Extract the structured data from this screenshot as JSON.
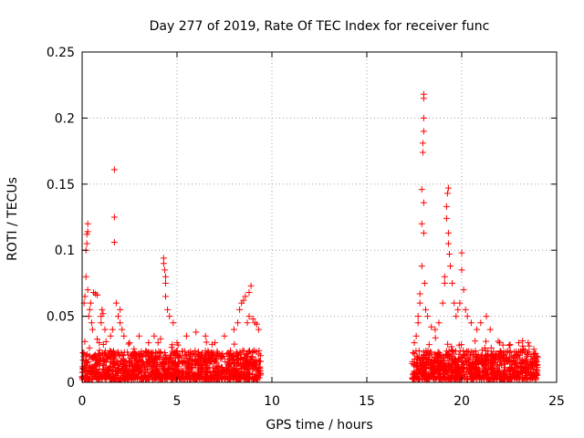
{
  "chart_data": {
    "type": "scatter",
    "title": "Day 277 of 2019, Rate Of TEC Index for receiver func",
    "xlabel": "GPS time / hours",
    "ylabel": "ROTI / TECUs",
    "xlim": [
      0,
      25
    ],
    "ylim": [
      0,
      0.25
    ],
    "xticks": [
      0,
      5,
      10,
      15,
      20,
      25
    ],
    "yticks": [
      0,
      0.05,
      0.1,
      0.15,
      0.2,
      0.25
    ],
    "xtick_labels": [
      "0",
      "5",
      "10",
      "15",
      "20",
      "25"
    ],
    "ytick_labels": [
      "0",
      "0.05",
      "0.1",
      "0.15",
      "0.2",
      "0.25"
    ],
    "grid": true,
    "marker": "+",
    "color": "#ff0000",
    "series": [
      {
        "name": "ROTI",
        "segments": [
          {
            "x_start": 0.0,
            "x_end": 9.4,
            "base_max": 0.022
          },
          {
            "x_start": 17.4,
            "x_end": 24.0,
            "base_max": 0.022
          }
        ],
        "points": [
          [
            0.1,
            0.06
          ],
          [
            0.15,
            0.065
          ],
          [
            0.2,
            0.08
          ],
          [
            0.2,
            0.1
          ],
          [
            0.25,
            0.105
          ],
          [
            0.25,
            0.112
          ],
          [
            0.3,
            0.114
          ],
          [
            0.3,
            0.12
          ],
          [
            0.3,
            0.07
          ],
          [
            0.35,
            0.05
          ],
          [
            0.4,
            0.055
          ],
          [
            0.45,
            0.06
          ],
          [
            0.5,
            0.045
          ],
          [
            0.55,
            0.04
          ],
          [
            0.6,
            0.068
          ],
          [
            0.7,
            0.067
          ],
          [
            0.8,
            0.066
          ],
          [
            0.9,
            0.03
          ],
          [
            1.0,
            0.045
          ],
          [
            1.0,
            0.05
          ],
          [
            1.05,
            0.055
          ],
          [
            1.1,
            0.052
          ],
          [
            1.2,
            0.04
          ],
          [
            1.5,
            0.035
          ],
          [
            1.6,
            0.04
          ],
          [
            1.7,
            0.161
          ],
          [
            1.7,
            0.125
          ],
          [
            1.7,
            0.106
          ],
          [
            1.8,
            0.06
          ],
          [
            1.9,
            0.05
          ],
          [
            2.0,
            0.055
          ],
          [
            2.0,
            0.045
          ],
          [
            2.1,
            0.04
          ],
          [
            2.2,
            0.035
          ],
          [
            2.5,
            0.03
          ],
          [
            3.0,
            0.035
          ],
          [
            3.5,
            0.03
          ],
          [
            3.8,
            0.035
          ],
          [
            4.0,
            0.03
          ],
          [
            4.3,
            0.094
          ],
          [
            4.3,
            0.09
          ],
          [
            4.35,
            0.085
          ],
          [
            4.4,
            0.08
          ],
          [
            4.4,
            0.075
          ],
          [
            4.4,
            0.065
          ],
          [
            4.5,
            0.055
          ],
          [
            4.6,
            0.05
          ],
          [
            4.8,
            0.045
          ],
          [
            5.0,
            0.03
          ],
          [
            5.5,
            0.035
          ],
          [
            6.0,
            0.038
          ],
          [
            6.5,
            0.035
          ],
          [
            7.0,
            0.03
          ],
          [
            7.5,
            0.035
          ],
          [
            8.0,
            0.04
          ],
          [
            8.2,
            0.045
          ],
          [
            8.3,
            0.055
          ],
          [
            8.4,
            0.06
          ],
          [
            8.5,
            0.062
          ],
          [
            8.6,
            0.065
          ],
          [
            8.7,
            0.045
          ],
          [
            8.8,
            0.05
          ],
          [
            8.8,
            0.068
          ],
          [
            8.9,
            0.073
          ],
          [
            9.0,
            0.048
          ],
          [
            9.1,
            0.045
          ],
          [
            9.2,
            0.044
          ],
          [
            9.3,
            0.04
          ],
          [
            17.5,
            0.03
          ],
          [
            17.6,
            0.035
          ],
          [
            17.7,
            0.045
          ],
          [
            17.7,
            0.05
          ],
          [
            17.8,
            0.06
          ],
          [
            17.8,
            0.067
          ],
          [
            17.9,
            0.088
          ],
          [
            17.9,
            0.12
          ],
          [
            17.9,
            0.146
          ],
          [
            17.95,
            0.174
          ],
          [
            17.95,
            0.181
          ],
          [
            18.0,
            0.19
          ],
          [
            18.0,
            0.2
          ],
          [
            18.0,
            0.215
          ],
          [
            18.0,
            0.218
          ],
          [
            18.0,
            0.113
          ],
          [
            18.0,
            0.136
          ],
          [
            18.05,
            0.075
          ],
          [
            18.1,
            0.055
          ],
          [
            18.2,
            0.05
          ],
          [
            18.4,
            0.042
          ],
          [
            18.6,
            0.04
          ],
          [
            18.8,
            0.045
          ],
          [
            19.0,
            0.06
          ],
          [
            19.1,
            0.075
          ],
          [
            19.1,
            0.08
          ],
          [
            19.2,
            0.124
          ],
          [
            19.2,
            0.133
          ],
          [
            19.25,
            0.143
          ],
          [
            19.3,
            0.147
          ],
          [
            19.3,
            0.113
          ],
          [
            19.3,
            0.105
          ],
          [
            19.35,
            0.097
          ],
          [
            19.4,
            0.088
          ],
          [
            19.5,
            0.075
          ],
          [
            19.6,
            0.06
          ],
          [
            19.7,
            0.05
          ],
          [
            19.8,
            0.055
          ],
          [
            19.9,
            0.06
          ],
          [
            20.0,
            0.098
          ],
          [
            20.0,
            0.085
          ],
          [
            20.1,
            0.07
          ],
          [
            20.2,
            0.055
          ],
          [
            20.3,
            0.05
          ],
          [
            20.5,
            0.045
          ],
          [
            20.8,
            0.04
          ],
          [
            21.0,
            0.045
          ],
          [
            21.3,
            0.05
          ],
          [
            21.5,
            0.04
          ],
          [
            22.0,
            0.03
          ],
          [
            22.5,
            0.028
          ],
          [
            23.0,
            0.03
          ],
          [
            23.5,
            0.03
          ],
          [
            23.8,
            0.025
          ]
        ]
      }
    ]
  }
}
